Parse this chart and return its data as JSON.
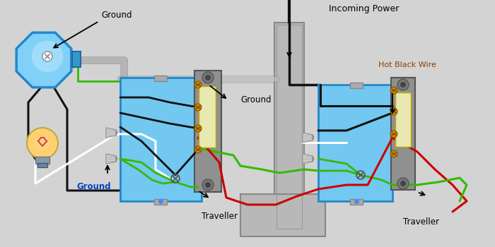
{
  "bg_color": "#d3d3d3",
  "labels": {
    "ground_top": "Ground",
    "ground_bottom": "Ground",
    "traveller_left": "Traveller",
    "traveller_right": "Traveller",
    "incoming_power": "Incoming Power",
    "hot_black_wire": "Hot Black Wire",
    "ground_mid": "Ground"
  },
  "label_colors": {
    "ground_top": "#000000",
    "ground_bottom": "#0044cc",
    "traveller_left": "#000000",
    "traveller_right": "#000000",
    "incoming_power": "#000000",
    "hot_black_wire": "#8B4000",
    "ground_mid": "#000000"
  },
  "wire": {
    "black": "#111111",
    "white": "#ffffff",
    "green": "#33bb00",
    "red": "#cc0000"
  },
  "box_fill": "#72c8f0",
  "box_edge": "#2288cc",
  "plate_fill": "#909090",
  "plate_edge": "#555555",
  "toggle_fill": "#e8e8b0",
  "toggle_edge": "#bbaa00",
  "screw_color": "#cc8800",
  "conduit_fill": "#b8b8b8",
  "conduit_edge": "#888888",
  "junction_fill": "#aaaaaa",
  "junction_edge": "#666666"
}
